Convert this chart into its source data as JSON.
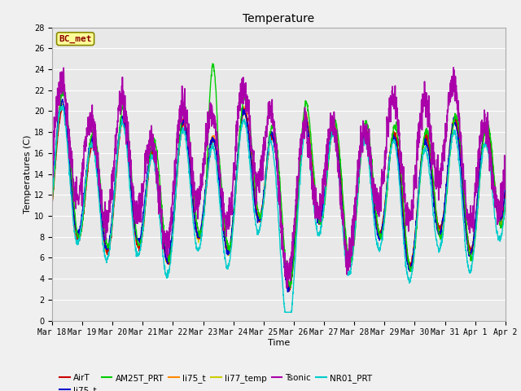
{
  "title": "Temperature",
  "xlabel": "Time",
  "ylabel": "Temperatures (C)",
  "annotation": "BC_met",
  "ylim": [
    0,
    28
  ],
  "x_tick_labels": [
    "Mar 18",
    "Mar 19",
    "Mar 20",
    "Mar 21",
    "Mar 22",
    "Mar 23",
    "Mar 24",
    "Mar 25",
    "Mar 26",
    "Mar 27",
    "Mar 28",
    "Mar 29",
    "Mar 30",
    "Mar 31",
    "Apr 1",
    "Apr 2"
  ],
  "series": {
    "AirT": {
      "color": "#cc0000",
      "lw": 1.0
    },
    "li75_t_b": {
      "color": "#0000cc",
      "lw": 1.0
    },
    "AM25T_PRT": {
      "color": "#00cc00",
      "lw": 1.0
    },
    "li75_t": {
      "color": "#ff8800",
      "lw": 1.0
    },
    "li77_temp": {
      "color": "#cccc00",
      "lw": 1.0
    },
    "Tsonic": {
      "color": "#aa00aa",
      "lw": 1.2
    },
    "NR01_PRT": {
      "color": "#00cccc",
      "lw": 1.0
    }
  },
  "bg_color": "#e8e8e8",
  "grid_color": "#ffffff",
  "title_fontsize": 10,
  "label_fontsize": 8,
  "tick_fontsize": 7
}
